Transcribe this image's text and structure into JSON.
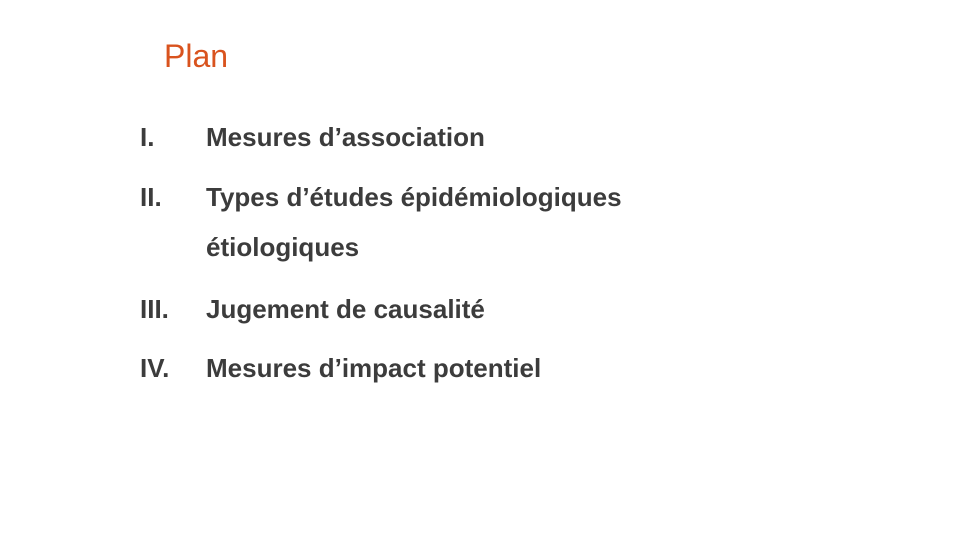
{
  "slide": {
    "title": "Plan",
    "items": [
      {
        "number": "I.",
        "text": "Mesures d’association"
      },
      {
        "number": "II.",
        "text": "Types d’études épidémiologiques étiologiques"
      },
      {
        "number": "III.",
        "text": "Jugement de causalité"
      },
      {
        "number": "IV.",
        "text": "Mesures d’impact potentiel"
      }
    ]
  },
  "colors": {
    "title": "#d9531e",
    "text": "#3c3c3c",
    "background": "#ffffff"
  }
}
